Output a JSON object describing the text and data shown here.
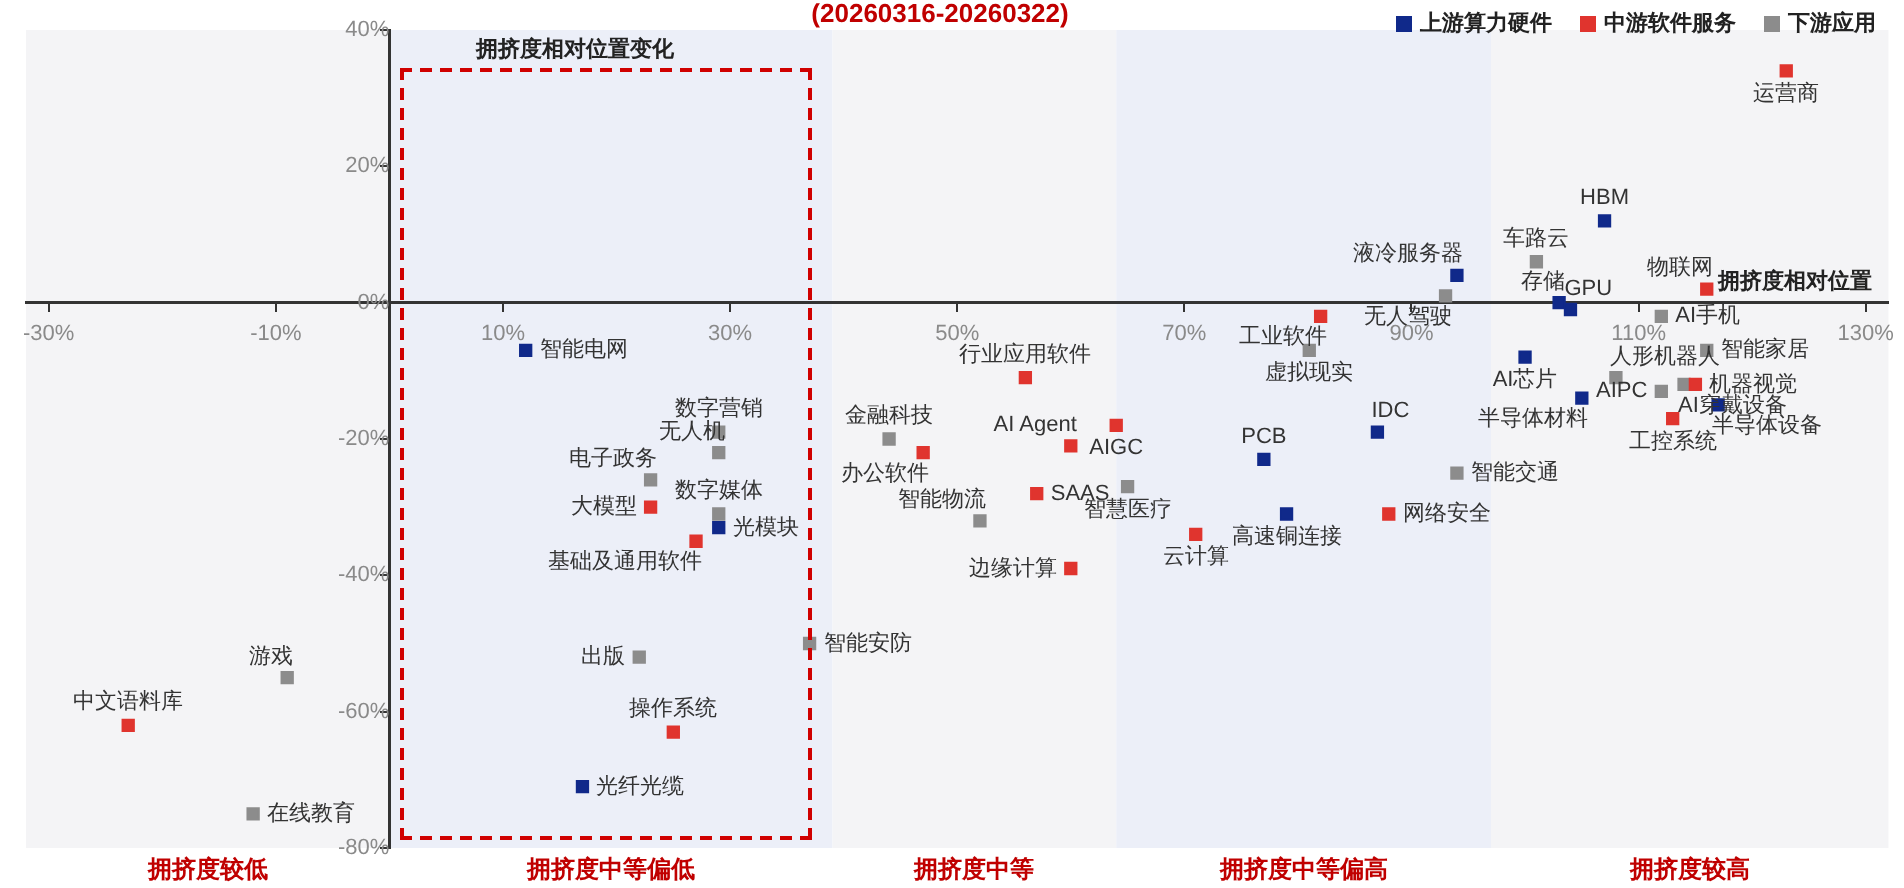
{
  "chart_data": {
    "type": "scatter",
    "title": "(20260316-20260322)",
    "xlabel": "拥挤度相对位置",
    "annotations": [
      "拥挤度相对位置变化"
    ],
    "xlim": [
      -32,
      132
    ],
    "ylim": [
      -80,
      40
    ],
    "xticks": [
      {
        "value": -30,
        "label": "-30%"
      },
      {
        "value": -10,
        "label": "-10%"
      },
      {
        "value": 10,
        "label": "10%"
      },
      {
        "value": 30,
        "label": "30%"
      },
      {
        "value": 50,
        "label": "50%"
      },
      {
        "value": 70,
        "label": "70%"
      },
      {
        "value": 90,
        "label": "90%"
      },
      {
        "value": 110,
        "label": "110%"
      },
      {
        "value": 130,
        "label": "130%"
      }
    ],
    "yticks": [
      {
        "value": 40,
        "label": "40%"
      },
      {
        "value": 20,
        "label": "20%"
      },
      {
        "value": 0,
        "label": "0%"
      },
      {
        "value": -20,
        "label": "-20%"
      },
      {
        "value": -40,
        "label": "-40%"
      },
      {
        "value": -60,
        "label": "-60%"
      },
      {
        "value": -80,
        "label": "-80%"
      }
    ],
    "bands": [
      {
        "axis": "x",
        "from": -32,
        "to": 0,
        "label": "拥挤度较低",
        "color": "#f4f4f6"
      },
      {
        "axis": "x",
        "from": 0,
        "to": 39,
        "label": "拥挤度中等偏低",
        "color": "#eceff8"
      },
      {
        "axis": "x",
        "from": 39,
        "to": 64,
        "label": "拥挤度中等",
        "color": "#f4f4f6"
      },
      {
        "axis": "x",
        "from": 64,
        "to": 97,
        "label": "拥挤度中等偏高",
        "color": "#eceff8"
      },
      {
        "axis": "x",
        "from": 97,
        "to": 132,
        "label": "拥挤度较高",
        "color": "#f4f4f6"
      }
    ],
    "grid": false,
    "legend": "top right",
    "marker": "square",
    "series": [
      {
        "name": "上游算力硬件",
        "color": "#10298a",
        "x": [
          12,
          29,
          17,
          94,
          87,
          77,
          79,
          107,
          103,
          104,
          100,
          105,
          117
        ],
        "values": [
          -7,
          -33,
          -71,
          4,
          -19,
          -23,
          -31,
          12,
          0,
          -1,
          -8,
          -14,
          -15
        ],
        "value_labels": [
          "智能电网",
          "光模块",
          "光纤光缆",
          "液冷服务器",
          "IDC",
          "PCB",
          "高速铜连接",
          "HBM",
          "存储",
          "GPU",
          "AI芯片",
          "半导体材料",
          "半导体设备"
        ]
      },
      {
        "name": "中游软件服务",
        "color": "#e0342e",
        "x": [
          123,
          116,
          115,
          113,
          -23,
          23,
          27,
          25,
          56,
          60,
          64,
          88,
          82,
          47,
          57,
          60,
          71
        ],
        "values": [
          34,
          2,
          -12,
          -17,
          -62,
          -30,
          -35,
          -63,
          -11,
          -21,
          -18,
          -31,
          -2,
          -22,
          -28,
          -39,
          -34
        ],
        "value_labels": [
          "运营商",
          "物联网",
          "机器视觉",
          "工控系统",
          "中文语料库",
          "大模型",
          "基础及通用软件",
          "操作系统",
          "行业应用软件",
          "AI Agent",
          "AIGC",
          "网络安全",
          "工业软件",
          "办公软件",
          "SAAS",
          "边缘计算",
          "云计算"
        ]
      },
      {
        "name": "下游应用",
        "color": "#8c8c8c",
        "x": [
          29,
          29,
          23,
          29,
          22,
          -9,
          -12,
          37,
          44,
          52,
          65,
          94,
          81,
          93,
          101,
          112,
          116,
          108,
          112,
          114
        ],
        "values": [
          -19,
          -22,
          -26,
          -31,
          -52,
          -55,
          -75,
          -50,
          -20,
          -32,
          -27,
          -25,
          -7,
          1,
          6,
          -2,
          -7,
          -11,
          -13,
          -12
        ],
        "value_labels": [
          "数字营销",
          "无人机",
          "电子政务",
          "数字媒体",
          "出版",
          "游戏",
          "在线教育",
          "智能安防",
          "金融科技",
          "智能物流",
          "智慧医疗",
          "智能交通",
          "虚拟现实",
          "无人驾驶",
          "车路云",
          "AI手机",
          "智能家居",
          "人形机器人",
          "AIPC",
          "AI穿戴设备"
        ]
      }
    ]
  }
}
